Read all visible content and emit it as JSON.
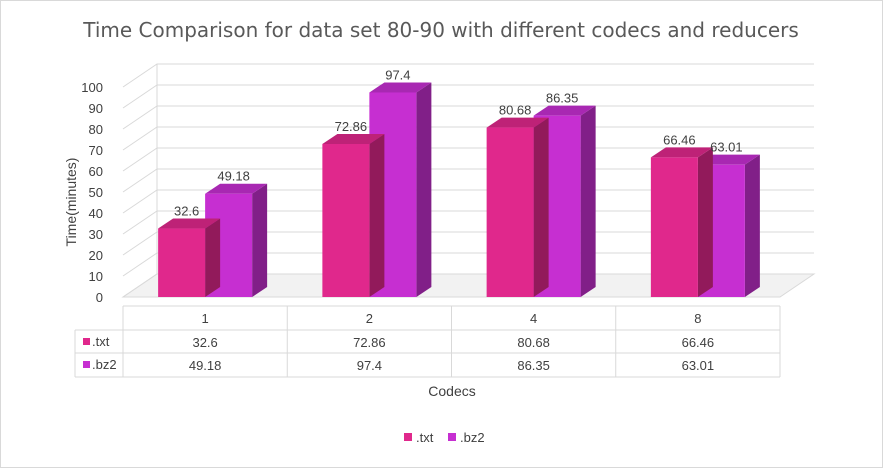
{
  "chart_data": {
    "type": "bar",
    "title": "Time Comparison for data set 80-90 with different codecs and reducers",
    "xlabel": "Codecs",
    "ylabel": "Time(minutes)",
    "categories": [
      "1",
      "2",
      "4",
      "8"
    ],
    "ylim": [
      0,
      100
    ],
    "yticks": [
      0,
      10,
      20,
      30,
      40,
      50,
      60,
      70,
      80,
      90,
      100
    ],
    "series": [
      {
        "name": ".txt",
        "values": [
          32.6,
          72.86,
          80.68,
          66.46
        ],
        "color": "#e0288c"
      },
      {
        "name": ".bz2",
        "values": [
          49.18,
          97.4,
          86.35,
          63.01
        ],
        "color": "#c62fd1"
      }
    ],
    "data_labels": true,
    "data_table": true,
    "legend_position": "bottom",
    "grid": true,
    "style": "3d-clustered-column"
  }
}
